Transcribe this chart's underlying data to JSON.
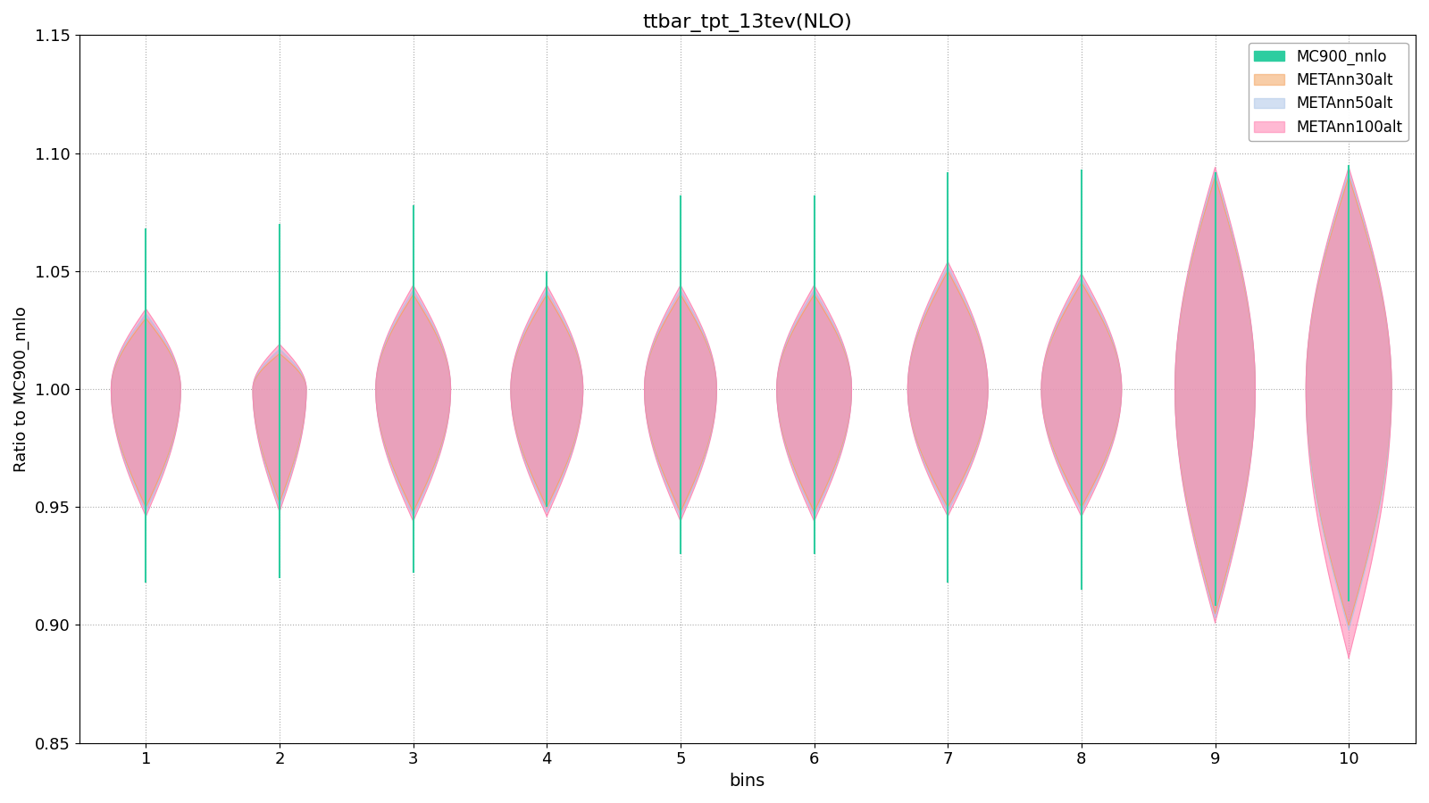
{
  "title": "ttbar_tpt_13tev(NLO)",
  "xlabel": "bins",
  "ylabel": "Ratio to MC900_nnlo",
  "ylim": [
    0.85,
    1.15
  ],
  "yticks": [
    0.85,
    0.9,
    0.95,
    1.0,
    1.05,
    1.1,
    1.15
  ],
  "n_bins": 10,
  "figsize": [
    16.0,
    9.0
  ],
  "datasets": {
    "MC900_nnlo": {
      "color": "#2ecda0",
      "mins": [
        0.918,
        0.92,
        0.922,
        0.95,
        0.93,
        0.93,
        0.918,
        0.915,
        0.908,
        0.91
      ],
      "maxs": [
        1.068,
        1.07,
        1.078,
        1.05,
        1.082,
        1.082,
        1.092,
        1.093,
        1.092,
        1.095
      ]
    },
    "METAnn30alt": {
      "color": "#f4a460",
      "alpha": 0.55,
      "mins": [
        0.95,
        0.952,
        0.948,
        0.95,
        0.948,
        0.948,
        0.95,
        0.95,
        0.905,
        0.9
      ],
      "maxs": [
        1.03,
        1.015,
        1.04,
        1.04,
        1.04,
        1.04,
        1.05,
        1.045,
        1.09,
        1.09
      ],
      "half_widths": [
        0.26,
        0.2,
        0.28,
        0.27,
        0.27,
        0.28,
        0.3,
        0.3,
        0.3,
        0.32
      ]
    },
    "METAnn50alt": {
      "color": "#aec6e8",
      "alpha": 0.55,
      "mins": [
        0.948,
        0.95,
        0.946,
        0.948,
        0.946,
        0.946,
        0.948,
        0.948,
        0.903,
        0.898
      ],
      "maxs": [
        1.032,
        1.017,
        1.042,
        1.042,
        1.042,
        1.042,
        1.052,
        1.047,
        1.092,
        1.092
      ],
      "half_widths": [
        0.26,
        0.2,
        0.28,
        0.27,
        0.27,
        0.28,
        0.3,
        0.3,
        0.3,
        0.32
      ]
    },
    "METAnn100alt": {
      "color": "#ff80b0",
      "alpha": 0.55,
      "mins": [
        0.946,
        0.948,
        0.944,
        0.946,
        0.944,
        0.944,
        0.946,
        0.946,
        0.901,
        0.886
      ],
      "maxs": [
        1.034,
        1.019,
        1.044,
        1.044,
        1.044,
        1.044,
        1.054,
        1.049,
        1.094,
        1.094
      ],
      "half_widths": [
        0.26,
        0.2,
        0.28,
        0.27,
        0.27,
        0.28,
        0.3,
        0.3,
        0.3,
        0.32
      ]
    }
  },
  "legend_labels": [
    "MC900_nnlo",
    "METAnn30alt",
    "METAnn50alt",
    "METAnn100alt"
  ],
  "legend_colors": [
    "#2ecda0",
    "#f4a460",
    "#aec6e8",
    "#ff80b0"
  ],
  "legend_alphas": [
    1.0,
    0.55,
    0.55,
    0.55
  ],
  "background_color": "#ffffff",
  "grid_color": "#888888"
}
